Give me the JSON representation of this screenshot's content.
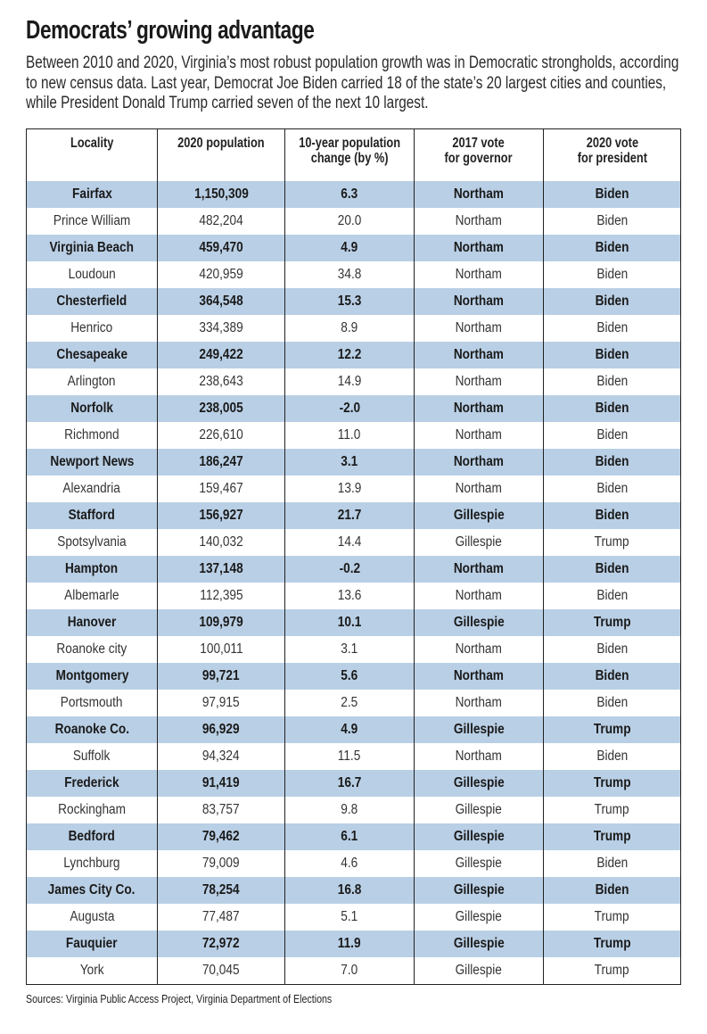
{
  "title": "Democrats’ growing advantage",
  "subtitle": "Between 2010 and 2020, Virginia’s most robust population growth was in Democratic strongholds, according to new census data. Last year, Democrat Joe Biden carried 18 of the state’s 20 largest cities and counties, while President Donald Trump carried seven of the next 10 largest.",
  "source": "Sources: Virginia Public Access Project, Virginia Department of Elections",
  "colors": {
    "highlight_row": "#b9cfe5",
    "border": "#222222"
  },
  "chart_data": {
    "type": "table",
    "columns": [
      "Locality",
      "2020 population",
      "10-year population change (by %)",
      "2017 vote for governor",
      "2020 vote for president"
    ],
    "column_header_lines": [
      [
        "Locality"
      ],
      [
        "2020 population"
      ],
      [
        "10-year population",
        "change (by %)"
      ],
      [
        "2017 vote",
        "for governor"
      ],
      [
        "2020 vote",
        "for president"
      ]
    ],
    "rows": [
      [
        "Fairfax",
        "1,150,309",
        "6.3",
        "Northam",
        "Biden"
      ],
      [
        "Prince William",
        "482,204",
        "20.0",
        "Northam",
        "Biden"
      ],
      [
        "Virginia Beach",
        "459,470",
        "4.9",
        "Northam",
        "Biden"
      ],
      [
        "Loudoun",
        "420,959",
        "34.8",
        "Northam",
        "Biden"
      ],
      [
        "Chesterfield",
        "364,548",
        "15.3",
        "Northam",
        "Biden"
      ],
      [
        "Henrico",
        "334,389",
        "8.9",
        "Northam",
        "Biden"
      ],
      [
        "Chesapeake",
        "249,422",
        "12.2",
        "Northam",
        "Biden"
      ],
      [
        "Arlington",
        "238,643",
        "14.9",
        "Northam",
        "Biden"
      ],
      [
        "Norfolk",
        "238,005",
        "-2.0",
        "Northam",
        "Biden"
      ],
      [
        "Richmond",
        "226,610",
        "11.0",
        "Northam",
        "Biden"
      ],
      [
        "Newport News",
        "186,247",
        "3.1",
        "Northam",
        "Biden"
      ],
      [
        "Alexandria",
        "159,467",
        "13.9",
        "Northam",
        "Biden"
      ],
      [
        "Stafford",
        "156,927",
        "21.7",
        "Gillespie",
        "Biden"
      ],
      [
        "Spotsylvania",
        "140,032",
        "14.4",
        "Gillespie",
        "Trump"
      ],
      [
        "Hampton",
        "137,148",
        "-0.2",
        "Northam",
        "Biden"
      ],
      [
        "Albemarle",
        "112,395",
        "13.6",
        "Northam",
        "Biden"
      ],
      [
        "Hanover",
        "109,979",
        "10.1",
        "Gillespie",
        "Trump"
      ],
      [
        "Roanoke city",
        "100,011",
        "3.1",
        "Northam",
        "Biden"
      ],
      [
        "Montgomery",
        "99,721",
        "5.6",
        "Northam",
        "Biden"
      ],
      [
        "Portsmouth",
        "97,915",
        "2.5",
        "Northam",
        "Biden"
      ],
      [
        "Roanoke Co.",
        "96,929",
        "4.9",
        "Gillespie",
        "Trump"
      ],
      [
        "Suffolk",
        "94,324",
        "11.5",
        "Northam",
        "Biden"
      ],
      [
        "Frederick",
        "91,419",
        "16.7",
        "Gillespie",
        "Trump"
      ],
      [
        "Rockingham",
        "83,757",
        "9.8",
        "Gillespie",
        "Trump"
      ],
      [
        "Bedford",
        "79,462",
        "6.1",
        "Gillespie",
        "Trump"
      ],
      [
        "Lynchburg",
        "79,009",
        "4.6",
        "Gillespie",
        "Biden"
      ],
      [
        "James City Co.",
        "78,254",
        "16.8",
        "Gillespie",
        "Biden"
      ],
      [
        "Augusta",
        "77,487",
        "5.1",
        "Gillespie",
        "Trump"
      ],
      [
        "Fauquier",
        "72,972",
        "11.9",
        "Gillespie",
        "Trump"
      ],
      [
        "York",
        "70,045",
        "7.0",
        "Gillespie",
        "Trump"
      ]
    ]
  }
}
